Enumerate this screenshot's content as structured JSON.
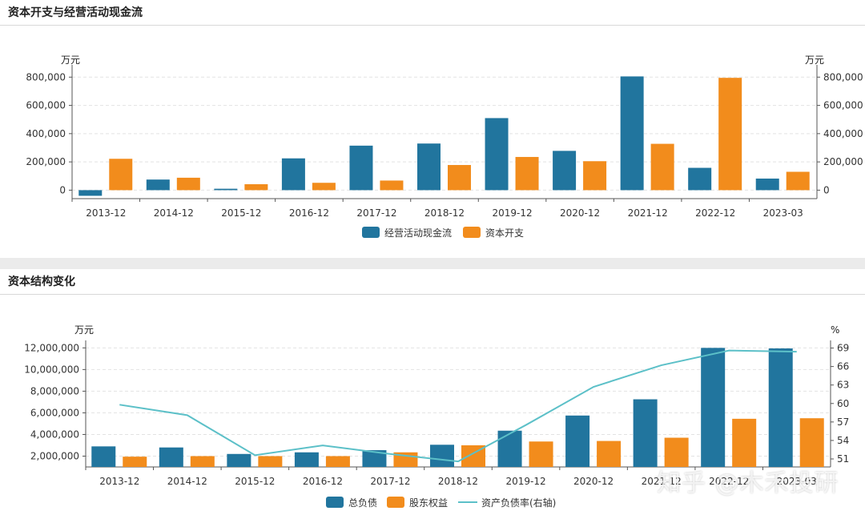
{
  "titles": {
    "panel1": "资本开支与经营活动现金流",
    "panel2": "资本结构变化"
  },
  "watermark": "知乎 @木禾投研",
  "colors": {
    "blue": "#21759e",
    "orange": "#f28c1c",
    "line": "#5cc0c8"
  },
  "chart_data": [
    {
      "type": "bar",
      "categories": [
        "2013-12",
        "2014-12",
        "2015-12",
        "2016-12",
        "2017-12",
        "2018-12",
        "2019-12",
        "2020-12",
        "2021-12",
        "2022-12",
        "2023-03"
      ],
      "series": [
        {
          "name": "经营活动现金流",
          "values": [
            -40000,
            75000,
            10000,
            225000,
            315000,
            330000,
            510000,
            278000,
            805000,
            158000,
            82000
          ]
        },
        {
          "name": "资本开支",
          "values": [
            222000,
            88000,
            42000,
            52000,
            68000,
            178000,
            235000,
            205000,
            328000,
            795000,
            130000
          ]
        }
      ],
      "left_unit": "万元",
      "right_unit": "万元",
      "yticks": [
        0,
        200000,
        400000,
        600000,
        800000
      ],
      "ytick_labels": [
        "0",
        "200,000",
        "400,000",
        "600,000",
        "800,000"
      ],
      "ylim": [
        -60000,
        830000
      ],
      "legend": "bottom-center",
      "grid": true
    },
    {
      "type": "bar+line",
      "categories": [
        "2013-12",
        "2014-12",
        "2015-12",
        "2016-12",
        "2017-12",
        "2018-12",
        "2019-12",
        "2020-12",
        "2021-12",
        "2022-12",
        "2023-03"
      ],
      "series": [
        {
          "name": "总负债",
          "axis": "left",
          "values": [
            2900000,
            2800000,
            2200000,
            2350000,
            2550000,
            3050000,
            4350000,
            5750000,
            7250000,
            12000000,
            11950000
          ]
        },
        {
          "name": "股东权益",
          "axis": "left",
          "values": [
            1950000,
            2000000,
            2000000,
            2000000,
            2350000,
            3000000,
            3350000,
            3400000,
            3700000,
            5450000,
            5500000
          ]
        },
        {
          "name": "资产负债率(右轴)",
          "axis": "right",
          "type": "line",
          "values": [
            59.8,
            58.1,
            51.6,
            53.2,
            51.8,
            50.6,
            56.5,
            62.7,
            66.2,
            68.6,
            68.4
          ]
        }
      ],
      "left_unit": "万元",
      "right_unit": "%",
      "yticks_left": [
        2000000,
        4000000,
        6000000,
        8000000,
        10000000,
        12000000
      ],
      "ytick_labels_left": [
        "2,000,000",
        "4,000,000",
        "6,000,000",
        "8,000,000",
        "10,000,000",
        "12,000,000"
      ],
      "ylim_left": [
        1000000,
        12100000
      ],
      "yticks_right": [
        51,
        54,
        57,
        60,
        63,
        66,
        69
      ],
      "ytick_labels_right": [
        "51",
        "54",
        "57",
        "60",
        "63",
        "66",
        "69"
      ],
      "ylim_right": [
        49.7,
        69.2
      ],
      "legend": "bottom-center",
      "grid": true
    }
  ]
}
